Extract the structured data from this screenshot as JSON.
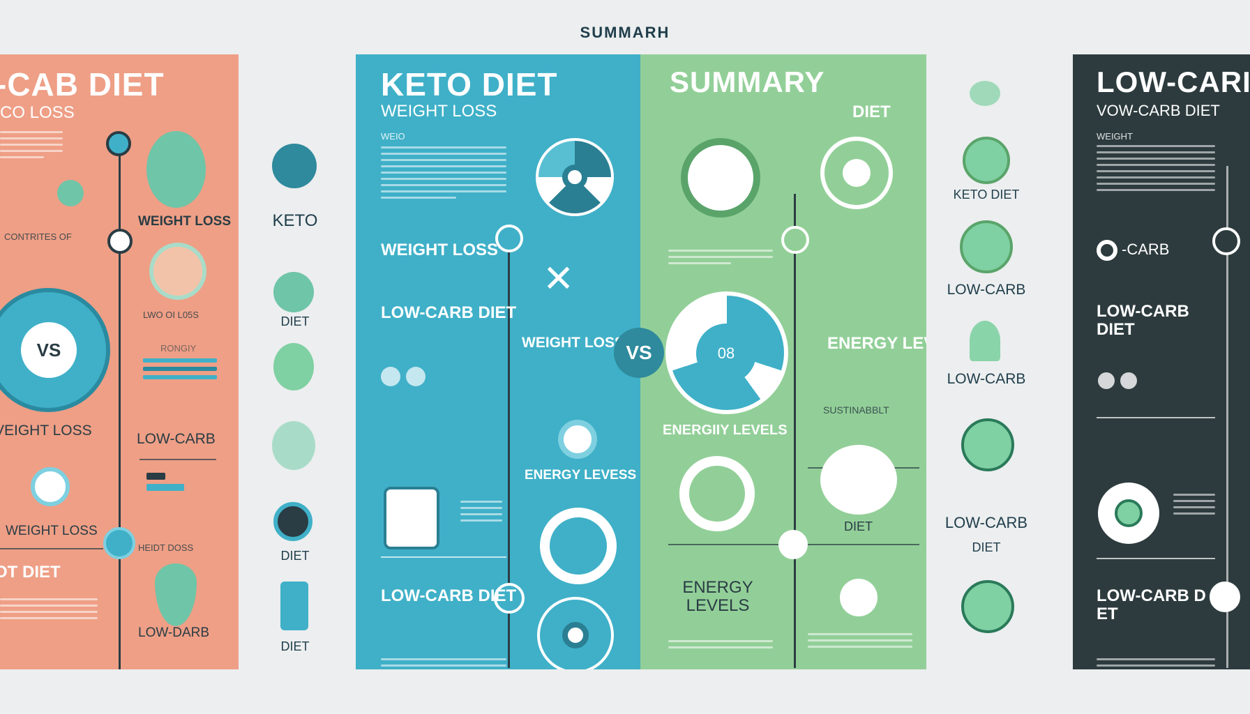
{
  "header": {
    "title": "SUMMARH"
  },
  "panel_left": {
    "title": "-CAB DIET",
    "subtitle": "CO LOSS",
    "labels": {
      "weight_loss_1": "WEIGHT LOSS",
      "vs": "VS",
      "weight_loss_2": "VEIGHT LOSS",
      "low_carb_1": "LOW-CARB",
      "weight_loss_3": "WEIGHT LOSS",
      "diet": "OT DIET",
      "low_carb_2": "LOW-DARB",
      "misc_1": "CONTRITES OF",
      "misc_2": "LWO OI L05S",
      "misc_3": "RONGIY",
      "misc_4": "HEIDT DOSS"
    }
  },
  "icon_column_1": {
    "items": [
      "KETO",
      "DIET",
      "DIET",
      "DIET"
    ]
  },
  "panel_keto": {
    "title": "KETO DIET",
    "subtitle": "WEIGHT LOSS",
    "labels": {
      "weight_loss": "WEIGHT LOSS",
      "low_carb": "LOW-CARB DIET",
      "weight_loss_mid": "WEIGHT LOSS",
      "energy": "ENERGY LEVESS",
      "low_carb_bottom": "LOW-CARB DIET",
      "small": "WEIO"
    }
  },
  "vs_badge": "VS",
  "panel_summary": {
    "title": "SUMMARY",
    "subtitle": "DIET",
    "labels": {
      "energy_levels": "ENERGY LEVELS",
      "energy_gili": "ENERGIIY LEVELS",
      "sustain": "SUSTINABBLT",
      "diet": "DIET",
      "energy_bottom": "ENERGY LEVELS",
      "circle_text": "08"
    }
  },
  "icon_column_2": {
    "items": [
      "KETO DIET",
      "LOW-CARB",
      "LOW-CARB",
      "LOW-CARB",
      "DIET"
    ]
  },
  "panel_right": {
    "title": "LOW-CARI",
    "subtitle": "VOW-CARB DIET",
    "labels": {
      "weight": "WEIGHT",
      "carb": "-CARB",
      "low_carb_1": "LOW-CARB DIET",
      "low_carb_2": "LOW-CARB D ET"
    }
  },
  "colors": {
    "orange": "#ee9f86",
    "blue": "#3fb0c8",
    "green": "#92cf98",
    "dark": "#2d3b3e",
    "accent": "#2e8a9c"
  }
}
